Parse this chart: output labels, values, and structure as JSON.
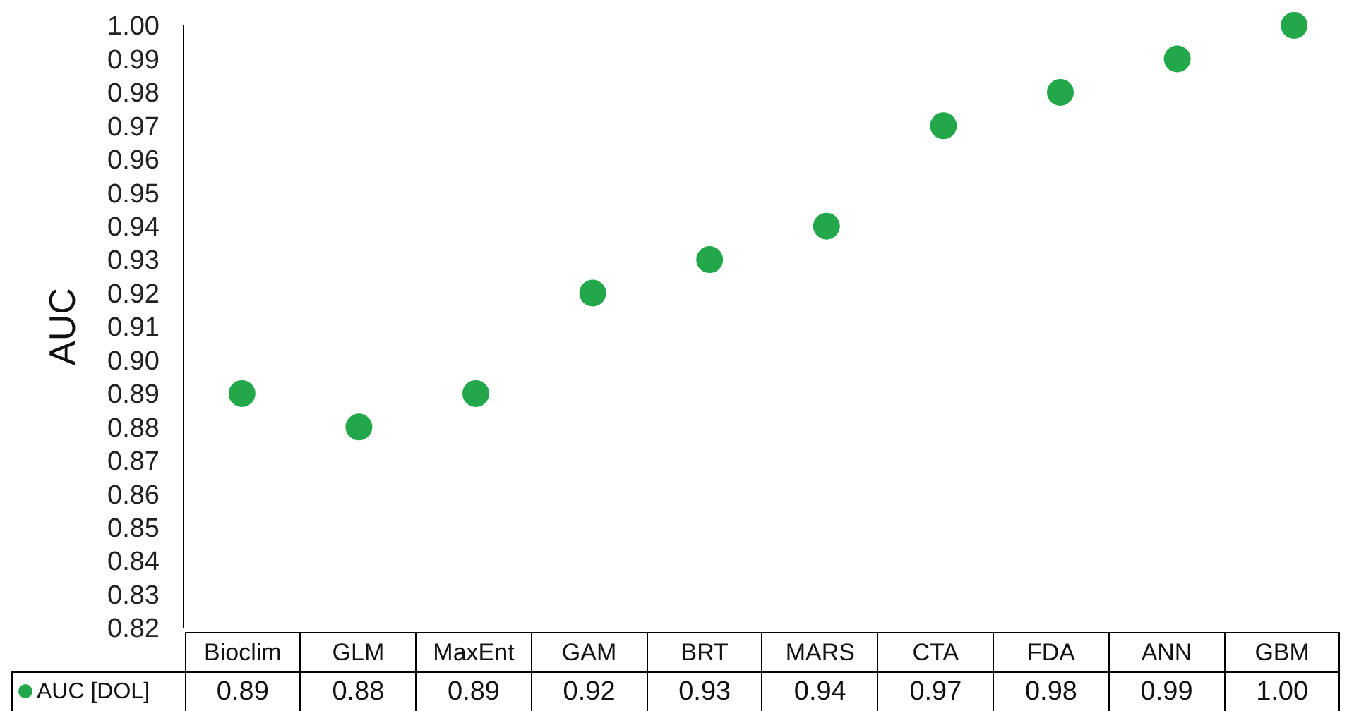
{
  "chart_data": {
    "type": "scatter",
    "ylabel": "AUC",
    "categories": [
      "Bioclim",
      "GLM",
      "MaxEnt",
      "GAM",
      "BRT",
      "MARS",
      "CTA",
      "FDA",
      "ANN",
      "GBM"
    ],
    "series": [
      {
        "name": "AUC [DOL]",
        "color": "#22a84a",
        "values": [
          0.89,
          0.88,
          0.89,
          0.92,
          0.93,
          0.94,
          0.97,
          0.98,
          0.99,
          1.0
        ],
        "value_labels": [
          "0.89",
          "0.88",
          "0.89",
          "0.92",
          "0.93",
          "0.94",
          "0.97",
          "0.98",
          "0.99",
          "1.00"
        ]
      }
    ],
    "ylim": [
      0.82,
      1.0
    ],
    "yticks": [
      0.82,
      0.83,
      0.84,
      0.85,
      0.86,
      0.87,
      0.88,
      0.89,
      {
        "value": 0.9,
        "label": "0.90"
      },
      0.91,
      0.92,
      0.93,
      0.94,
      0.95,
      0.96,
      0.97,
      0.98,
      0.99,
      {
        "value": 1.0,
        "label": "1.00"
      }
    ],
    "marker": "circle",
    "legend": "bottom"
  }
}
